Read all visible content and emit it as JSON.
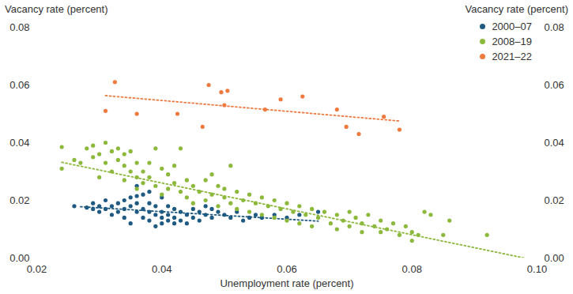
{
  "chart_data": {
    "type": "scatter",
    "xlabel": "Unemployment rate (percent)",
    "ylabel": "Vacancy rate (percent)",
    "y2label": "Vacancy rate (percent)",
    "xlim": [
      0.02,
      0.1
    ],
    "xticks": [
      0.02,
      0.04,
      0.06,
      0.08,
      {
        "value": 0.1,
        "label": "0.10"
      }
    ],
    "ylim": [
      0,
      0.08
    ],
    "yticks": [
      {
        "value": 0,
        "label": "0.00"
      },
      0.02,
      0.04,
      0.06,
      0.08
    ],
    "y2lim": [
      0,
      0.08
    ],
    "y2ticks": [
      {
        "value": 0,
        "label": "0.00"
      },
      0.02,
      0.04,
      0.06,
      0.08
    ],
    "grid": false,
    "legend": "top-right",
    "series": [
      {
        "name": "2000–07",
        "color": "#1f5a82",
        "marker": "circle",
        "x": [
          0.026,
          0.028,
          0.029,
          0.029,
          0.03,
          0.03,
          0.031,
          0.031,
          0.032,
          0.032,
          0.033,
          0.033,
          0.034,
          0.034,
          0.034,
          0.035,
          0.035,
          0.035,
          0.036,
          0.036,
          0.036,
          0.037,
          0.037,
          0.037,
          0.038,
          0.038,
          0.038,
          0.039,
          0.039,
          0.039,
          0.04,
          0.04,
          0.04,
          0.04,
          0.041,
          0.041,
          0.041,
          0.042,
          0.042,
          0.042,
          0.043,
          0.043,
          0.044,
          0.044,
          0.045,
          0.045,
          0.046,
          0.046,
          0.047,
          0.047,
          0.048,
          0.048,
          0.049,
          0.05,
          0.051,
          0.052,
          0.053,
          0.054,
          0.055,
          0.056,
          0.058,
          0.06,
          0.062,
          0.065,
          0.036,
          0.038
        ],
        "values": [
          0.018,
          0.0175,
          0.017,
          0.019,
          0.016,
          0.018,
          0.02,
          0.017,
          0.018,
          0.015,
          0.016,
          0.019,
          0.02,
          0.017,
          0.014,
          0.018,
          0.021,
          0.012,
          0.016,
          0.019,
          0.025,
          0.014,
          0.017,
          0.022,
          0.013,
          0.016,
          0.019,
          0.011,
          0.015,
          0.018,
          0.012,
          0.014,
          0.016,
          0.021,
          0.013,
          0.015,
          0.018,
          0.012,
          0.014,
          0.017,
          0.013,
          0.016,
          0.012,
          0.015,
          0.014,
          0.017,
          0.013,
          0.016,
          0.015,
          0.018,
          0.014,
          0.017,
          0.016,
          0.015,
          0.014,
          0.016,
          0.013,
          0.014,
          0.015,
          0.014,
          0.015,
          0.014,
          0.015,
          0.016,
          0.0215,
          0.023
        ],
        "trend": {
          "x": [
            0.027,
            0.065
          ],
          "values": [
            0.0178,
            0.0128
          ],
          "line_style": "dotted"
        }
      },
      {
        "name": "2008–19",
        "color": "#8cb83c",
        "marker": "circle",
        "x": [
          0.024,
          0.024,
          0.026,
          0.027,
          0.028,
          0.029,
          0.029,
          0.03,
          0.03,
          0.031,
          0.031,
          0.032,
          0.032,
          0.033,
          0.033,
          0.034,
          0.034,
          0.034,
          0.035,
          0.035,
          0.036,
          0.036,
          0.036,
          0.037,
          0.037,
          0.038,
          0.038,
          0.039,
          0.039,
          0.04,
          0.04,
          0.041,
          0.041,
          0.042,
          0.042,
          0.043,
          0.043,
          0.044,
          0.044,
          0.045,
          0.045,
          0.046,
          0.047,
          0.047,
          0.048,
          0.048,
          0.049,
          0.049,
          0.05,
          0.05,
          0.051,
          0.051,
          0.052,
          0.052,
          0.053,
          0.054,
          0.054,
          0.055,
          0.056,
          0.056,
          0.057,
          0.058,
          0.058,
          0.059,
          0.06,
          0.06,
          0.061,
          0.062,
          0.062,
          0.063,
          0.064,
          0.064,
          0.065,
          0.066,
          0.067,
          0.068,
          0.068,
          0.069,
          0.07,
          0.07,
          0.071,
          0.072,
          0.072,
          0.073,
          0.074,
          0.075,
          0.075,
          0.076,
          0.077,
          0.078,
          0.079,
          0.08,
          0.08,
          0.081,
          0.082,
          0.083,
          0.085,
          0.086,
          0.092
        ],
        "values": [
          0.0385,
          0.031,
          0.034,
          0.033,
          0.038,
          0.035,
          0.039,
          0.036,
          0.028,
          0.04,
          0.033,
          0.037,
          0.03,
          0.038,
          0.034,
          0.036,
          0.032,
          0.027,
          0.037,
          0.03,
          0.033,
          0.028,
          0.024,
          0.03,
          0.026,
          0.033,
          0.028,
          0.038,
          0.025,
          0.031,
          0.022,
          0.029,
          0.024,
          0.032,
          0.026,
          0.023,
          0.038,
          0.027,
          0.021,
          0.025,
          0.019,
          0.023,
          0.027,
          0.02,
          0.029,
          0.022,
          0.025,
          0.018,
          0.021,
          0.024,
          0.032,
          0.019,
          0.023,
          0.017,
          0.02,
          0.022,
          0.016,
          0.019,
          0.021,
          0.015,
          0.018,
          0.02,
          0.014,
          0.017,
          0.019,
          0.013,
          0.016,
          0.018,
          0.012,
          0.015,
          0.017,
          0.011,
          0.014,
          0.016,
          0.012,
          0.015,
          0.01,
          0.013,
          0.016,
          0.011,
          0.014,
          0.012,
          0.009,
          0.015,
          0.011,
          0.013,
          0.009,
          0.01,
          0.012,
          0.008,
          0.011,
          0.009,
          0.006,
          0.008,
          0.016,
          0.015,
          0.008,
          0.013,
          0.008
        ],
        "trend": {
          "x": [
            0.024,
            0.098
          ],
          "values": [
            0.0332,
            0.0
          ],
          "line_style": "dotted"
        }
      },
      {
        "name": "2021–22",
        "color": "#ef7a40",
        "marker": "circle",
        "x": [
          0.031,
          0.0325,
          0.036,
          0.0425,
          0.0465,
          0.0475,
          0.0495,
          0.0505,
          0.05,
          0.0565,
          0.059,
          0.0625,
          0.068,
          0.0695,
          0.0715,
          0.0755,
          0.078
        ],
        "values": [
          0.051,
          0.061,
          0.05,
          0.05,
          0.0455,
          0.06,
          0.0575,
          0.058,
          0.053,
          0.0515,
          0.055,
          0.056,
          0.0515,
          0.0455,
          0.043,
          0.049,
          0.0445
        ],
        "trend": {
          "x": [
            0.031,
            0.078
          ],
          "values": [
            0.0563,
            0.0475
          ],
          "line_style": "dotted"
        }
      }
    ]
  }
}
